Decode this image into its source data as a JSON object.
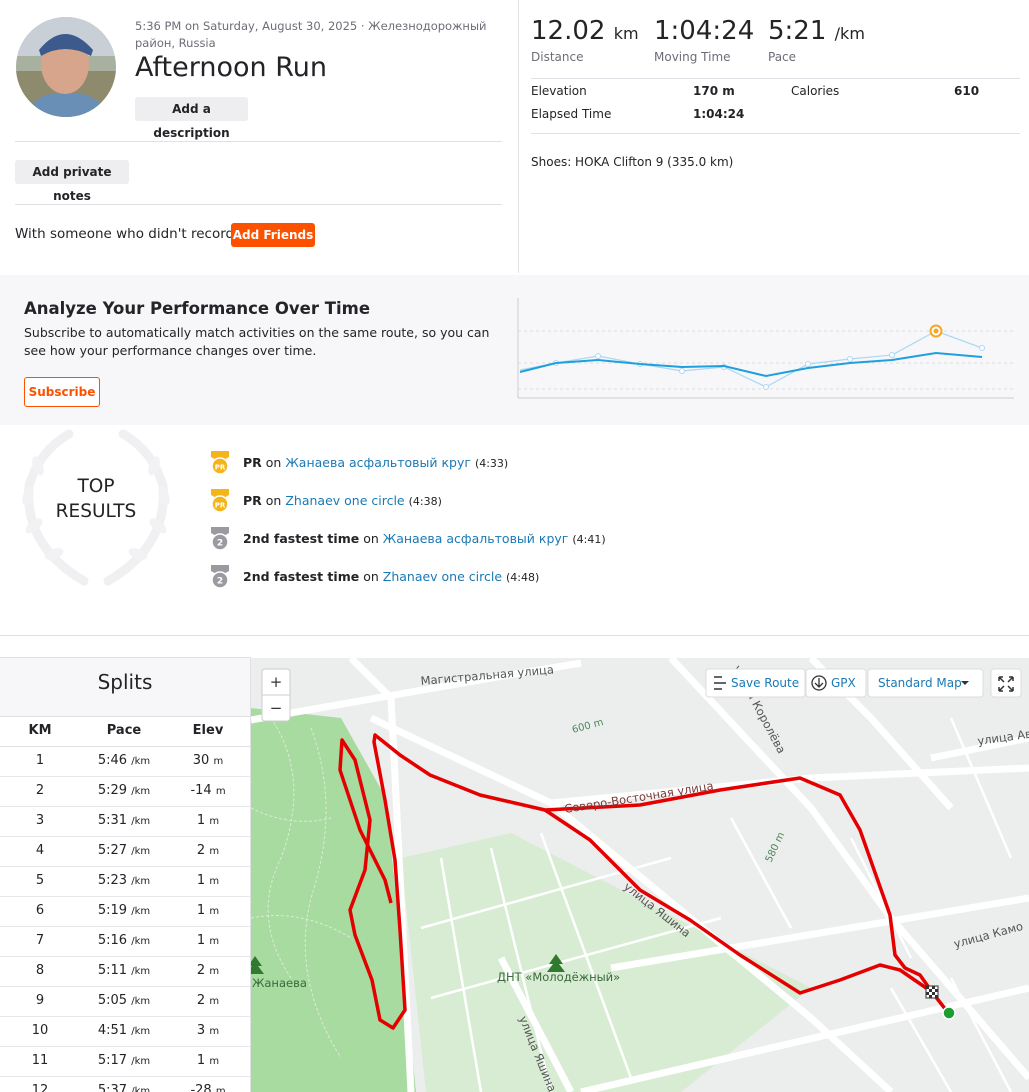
{
  "header": {
    "datetime": "5:36 PM on Saturday, August 30, 2025",
    "location": "· Железнодорожный район, Russia",
    "title": "Afternoon Run",
    "add_description": "Add a description",
    "add_private_notes": "Add private notes",
    "friends_prompt": "With someone who didn't record?",
    "add_friends": "Add Friends"
  },
  "stats": {
    "primary": [
      {
        "value": 12.02,
        "unit": "km",
        "label": "Distance"
      },
      {
        "value": "1:04:24",
        "label": "Moving Time"
      },
      {
        "value": "5:21",
        "unit": "/km",
        "label": "Pace"
      }
    ],
    "secondary": [
      {
        "label": "Elevation",
        "value": "170 m"
      },
      {
        "label": "Calories",
        "value": 610
      },
      {
        "label": "Elapsed Time",
        "value": "1:04:24"
      }
    ],
    "shoes": "Shoes: HOKA Clifton 9 (335.0 km)"
  },
  "analyze": {
    "title": "Analyze Your Performance Over Time",
    "text": "Subscribe to automatically match activities on the same route, so you can see how your performance changes over time.",
    "button": "Subscribe"
  },
  "top_results": {
    "title_line1": "TOP",
    "title_line2": "RESULTS",
    "items": [
      {
        "badge": "PR",
        "achievement": "PR",
        "connector": "on",
        "segment": "Жанаева асфальтовый круг",
        "time": "(4:33)"
      },
      {
        "badge": "PR",
        "achievement": "PR",
        "connector": "on",
        "segment": "Zhanaev one circle",
        "time": "(4:38)"
      },
      {
        "badge": "2",
        "achievement": "2nd fastest time",
        "connector": "on",
        "segment": "Жанаева асфальтовый круг",
        "time": "(4:41)"
      },
      {
        "badge": "2",
        "achievement": "2nd fastest time",
        "connector": "on",
        "segment": "Zhanaev one circle",
        "time": "(4:48)"
      }
    ]
  },
  "splits": {
    "title": "Splits",
    "columns": [
      "KM",
      "Pace",
      "Elev"
    ],
    "rows": [
      {
        "km": 1,
        "pace": "5:46",
        "pace_unit": "/km",
        "elev": 30,
        "elev_unit": "m"
      },
      {
        "km": 2,
        "pace": "5:29",
        "pace_unit": "/km",
        "elev": -14,
        "elev_unit": "m"
      },
      {
        "km": 3,
        "pace": "5:31",
        "pace_unit": "/km",
        "elev": 1,
        "elev_unit": "m"
      },
      {
        "km": 4,
        "pace": "5:27",
        "pace_unit": "/km",
        "elev": 2,
        "elev_unit": "m"
      },
      {
        "km": 5,
        "pace": "5:23",
        "pace_unit": "/km",
        "elev": 1,
        "elev_unit": "m"
      },
      {
        "km": 6,
        "pace": "5:19",
        "pace_unit": "/km",
        "elev": 1,
        "elev_unit": "m"
      },
      {
        "km": 7,
        "pace": "5:16",
        "pace_unit": "/km",
        "elev": 1,
        "elev_unit": "m"
      },
      {
        "km": 8,
        "pace": "5:11",
        "pace_unit": "/km",
        "elev": 2,
        "elev_unit": "m"
      },
      {
        "km": 9,
        "pace": "5:05",
        "pace_unit": "/km",
        "elev": 2,
        "elev_unit": "m"
      },
      {
        "km": 10,
        "pace": "4:51",
        "pace_unit": "/km",
        "elev": 3,
        "elev_unit": "m"
      },
      {
        "km": 11,
        "pace": "5:17",
        "pace_unit": "/km",
        "elev": 1,
        "elev_unit": "m"
      },
      {
        "km": 12,
        "pace": "5:37",
        "pace_unit": "/km",
        "elev": -28,
        "elev_unit": "m"
      }
    ]
  },
  "map": {
    "zoom_in": "+",
    "zoom_out": "−",
    "save_route": "Save Route",
    "gpx": "GPX",
    "map_type": "Standard Map",
    "labels": [
      "Магистральная улица",
      "600 m",
      "улица Королёва",
      "улица Ави",
      "Северо-Восточная улица",
      "580 m",
      "улица Яшина",
      "улица Камо",
      "ДНТ «Молодёжный»",
      "Жанаева",
      "улица Яшина"
    ]
  }
}
